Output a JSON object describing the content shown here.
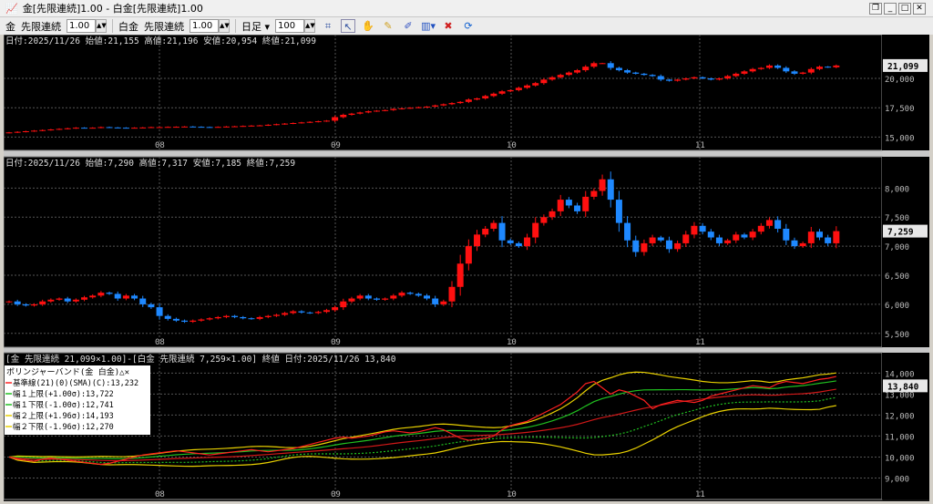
{
  "window": {
    "title": "金[先限連続]1.00 - 白金[先限連続]1.00",
    "buttons": [
      "restore",
      "minimize",
      "maximize",
      "close"
    ]
  },
  "toolbar": {
    "sym1": "金",
    "cont1": "先限連続",
    "mult1": "1.00",
    "sym2": "白金",
    "cont2": "先限連続",
    "mult2": "1.00",
    "period": "日足",
    "count": "100"
  },
  "colors": {
    "up": "#ff1010",
    "down": "#1e88ff",
    "bb_mid": "#ff2020",
    "bb_1": "#20c020",
    "bb_2": "#e8d000",
    "grid": "#555555"
  },
  "x_labels": [
    "08",
    "09",
    "10",
    "11"
  ],
  "panel1": {
    "header": "日付:2025/11/26 始値:21,155 高値:21,196 安値:20,954 終値:21,099",
    "last": "21,099",
    "ticks": [
      "15,000",
      "17,500",
      "20,000"
    ],
    "tick_values": [
      15000,
      17500,
      20000
    ],
    "ylim": [
      14800,
      22800
    ],
    "closes": [
      15400,
      15450,
      15500,
      15550,
      15600,
      15650,
      15700,
      15750,
      15800,
      15780,
      15800,
      15850,
      15820,
      15800,
      15780,
      15800,
      15820,
      15850,
      15850,
      15870,
      15880,
      15900,
      15880,
      15860,
      15850,
      15870,
      15900,
      15920,
      15950,
      15980,
      16000,
      16050,
      16100,
      16150,
      16200,
      16250,
      16300,
      16350,
      16400,
      16700,
      16900,
      17000,
      17100,
      17200,
      17250,
      17300,
      17400,
      17450,
      17500,
      17550,
      17600,
      17700,
      17800,
      17900,
      18000,
      18200,
      18300,
      18500,
      18700,
      18900,
      19000,
      19200,
      19400,
      19600,
      19900,
      20100,
      20300,
      20500,
      20700,
      21000,
      21300,
      21300,
      20900,
      20700,
      20500,
      20400,
      20300,
      20200,
      19900,
      19800,
      19900,
      20000,
      20100,
      20000,
      19900,
      20000,
      20200,
      20400,
      20600,
      20800,
      20900,
      21100,
      20900,
      20600,
      20400,
      20500,
      20800,
      21000,
      20950,
      21099
    ]
  },
  "panel2": {
    "header": "日付:2025/11/26 始値:7,290 高値:7,317 安値:7,185 終値:7,259",
    "last": "7,259",
    "ticks": [
      "5,500",
      "6,000",
      "6,500",
      "7,000",
      "7,500",
      "8,000"
    ],
    "tick_values": [
      5500,
      6000,
      6500,
      7000,
      7500,
      8000
    ],
    "ylim": [
      5450,
      8350
    ],
    "closes": [
      6050,
      6000,
      5980,
      6000,
      6050,
      6080,
      6100,
      6050,
      6080,
      6120,
      6150,
      6200,
      6180,
      6100,
      6150,
      6100,
      6000,
      5950,
      5800,
      5750,
      5720,
      5700,
      5720,
      5740,
      5760,
      5780,
      5800,
      5780,
      5760,
      5750,
      5780,
      5800,
      5820,
      5850,
      5880,
      5860,
      5850,
      5870,
      5900,
      5950,
      6050,
      6100,
      6150,
      6100,
      6080,
      6100,
      6150,
      6200,
      6180,
      6150,
      6100,
      6000,
      6050,
      6300,
      6700,
      7000,
      7200,
      7300,
      7400,
      7100,
      7050,
      7000,
      7150,
      7400,
      7500,
      7600,
      7800,
      7700,
      7600,
      7850,
      7950,
      8150,
      7800,
      7400,
      7100,
      6900,
      7050,
      7150,
      7100,
      6950,
      7050,
      7200,
      7350,
      7250,
      7150,
      7050,
      7100,
      7200,
      7150,
      7250,
      7350,
      7450,
      7300,
      7100,
      7000,
      7050,
      7250,
      7150,
      7050,
      7259
    ]
  },
  "panel3": {
    "header": "[金 先限連続 21,099×1.00]-[白金 先限連続 7,259×1.00] 終値 日付:2025/11/26 13,840",
    "last": "13,840",
    "ticks": [
      "9,000",
      "10,000",
      "11,000",
      "12,000",
      "13,000",
      "14,000"
    ],
    "tick_values": [
      9000,
      10000,
      11000,
      12000,
      13000,
      14000
    ],
    "ylim": [
      8500,
      14450
    ],
    "legend": {
      "title": "ボリンジャーバンド(金 白金)",
      "items": [
        "基準線(21)(0)(SMA)(C):13,232",
        "幅１上限(+1.00σ):13,722",
        "幅１下限(-1.00σ):12,741",
        "幅２上限(+1.96σ):14,193",
        "幅２下限(-1.96σ):12,270"
      ]
    },
    "bb_period": 21,
    "values": [
      10000,
      9900,
      9850,
      9800,
      9900,
      9950,
      9900,
      9850,
      9800,
      9750,
      9700,
      9650,
      9700,
      9800,
      9900,
      10000,
      10100,
      10150,
      10200,
      10250,
      10300,
      10250,
      10200,
      10150,
      10100,
      10150,
      10200,
      10250,
      10300,
      10350,
      10300,
      10250,
      10300,
      10350,
      10400,
      10500,
      10600,
      10700,
      10800,
      10900,
      10950,
      10900,
      10950,
      11000,
      11100,
      11200,
      11250,
      11200,
      11150,
      11200,
      11300,
      11400,
      11300,
      11100,
      10900,
      10800,
      10850,
      10900,
      11000,
      11300,
      11500,
      11600,
      11700,
      11900,
      12100,
      12300,
      12500,
      12800,
      13100,
      13500,
      13600,
      13300,
      13000,
      13200,
      13100,
      12900,
      12700,
      12300,
      12500,
      12600,
      12700,
      12650,
      12600,
      12700,
      12900,
      13000,
      13100,
      13200,
      13300,
      13400,
      13350,
      13300,
      13500,
      13600,
      13550,
      13500,
      13600,
      13700,
      13750,
      13840
    ]
  }
}
